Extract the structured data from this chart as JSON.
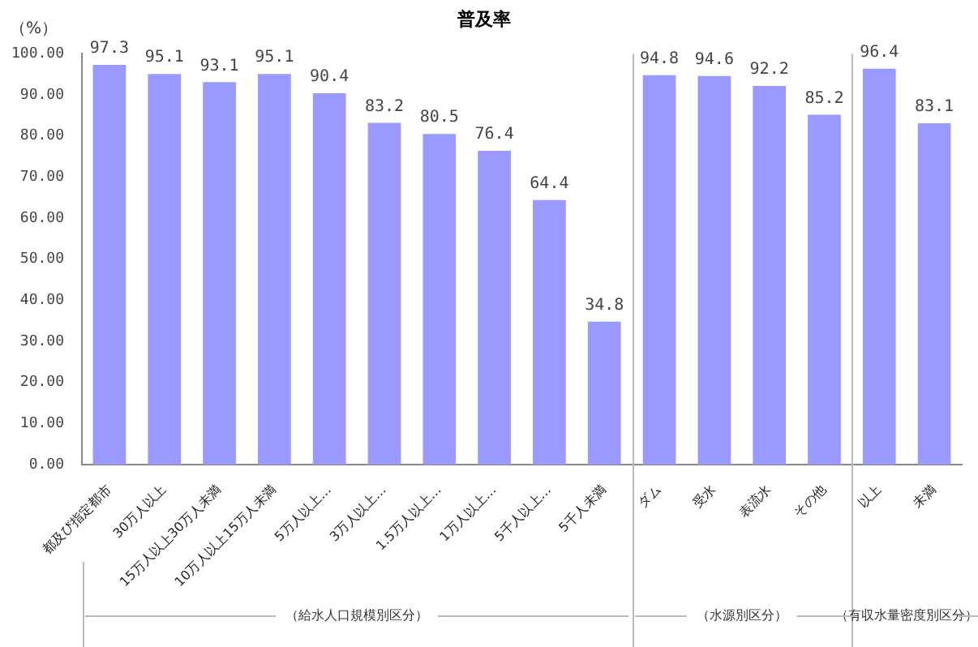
{
  "chart_data": {
    "type": "bar",
    "title": "普及率",
    "ylabel": "（%）",
    "categories": [
      "都及び指定都市",
      "30万人以上",
      "15万人以上30万人未満",
      "10万人以上15万人未満",
      "5万人以上…",
      "3万人以上…",
      "1.5万人以上…",
      "1万人以上…",
      "5千人以上…",
      "5千人未満",
      "ダム",
      "受水",
      "表流水",
      "その他",
      "以上",
      "未満"
    ],
    "values": [
      97.3,
      95.1,
      93.1,
      95.1,
      90.4,
      83.2,
      80.5,
      76.4,
      64.4,
      34.8,
      94.8,
      94.6,
      92.2,
      85.2,
      96.4,
      83.1
    ],
    "color": "#9999ff",
    "ylim": [
      0,
      100
    ],
    "yticks": [
      {
        "value": 0,
        "label": "0.00"
      },
      {
        "value": 10,
        "label": "10.00"
      },
      {
        "value": 20,
        "label": "20.00"
      },
      {
        "value": 30,
        "label": "30.00"
      },
      {
        "value": 40,
        "label": "40.00"
      },
      {
        "value": 50,
        "label": "50.00"
      },
      {
        "value": 60,
        "label": "60.00"
      },
      {
        "value": 70,
        "label": "70.00"
      },
      {
        "value": 80,
        "label": "80.00"
      },
      {
        "value": 90,
        "label": "90.00"
      },
      {
        "value": 100,
        "label": "100.00"
      }
    ],
    "data_labels": true,
    "annotations": [
      "（給水人口規模別区分）",
      "（水源別区分）",
      "（有収水量密度別区分）"
    ]
  }
}
